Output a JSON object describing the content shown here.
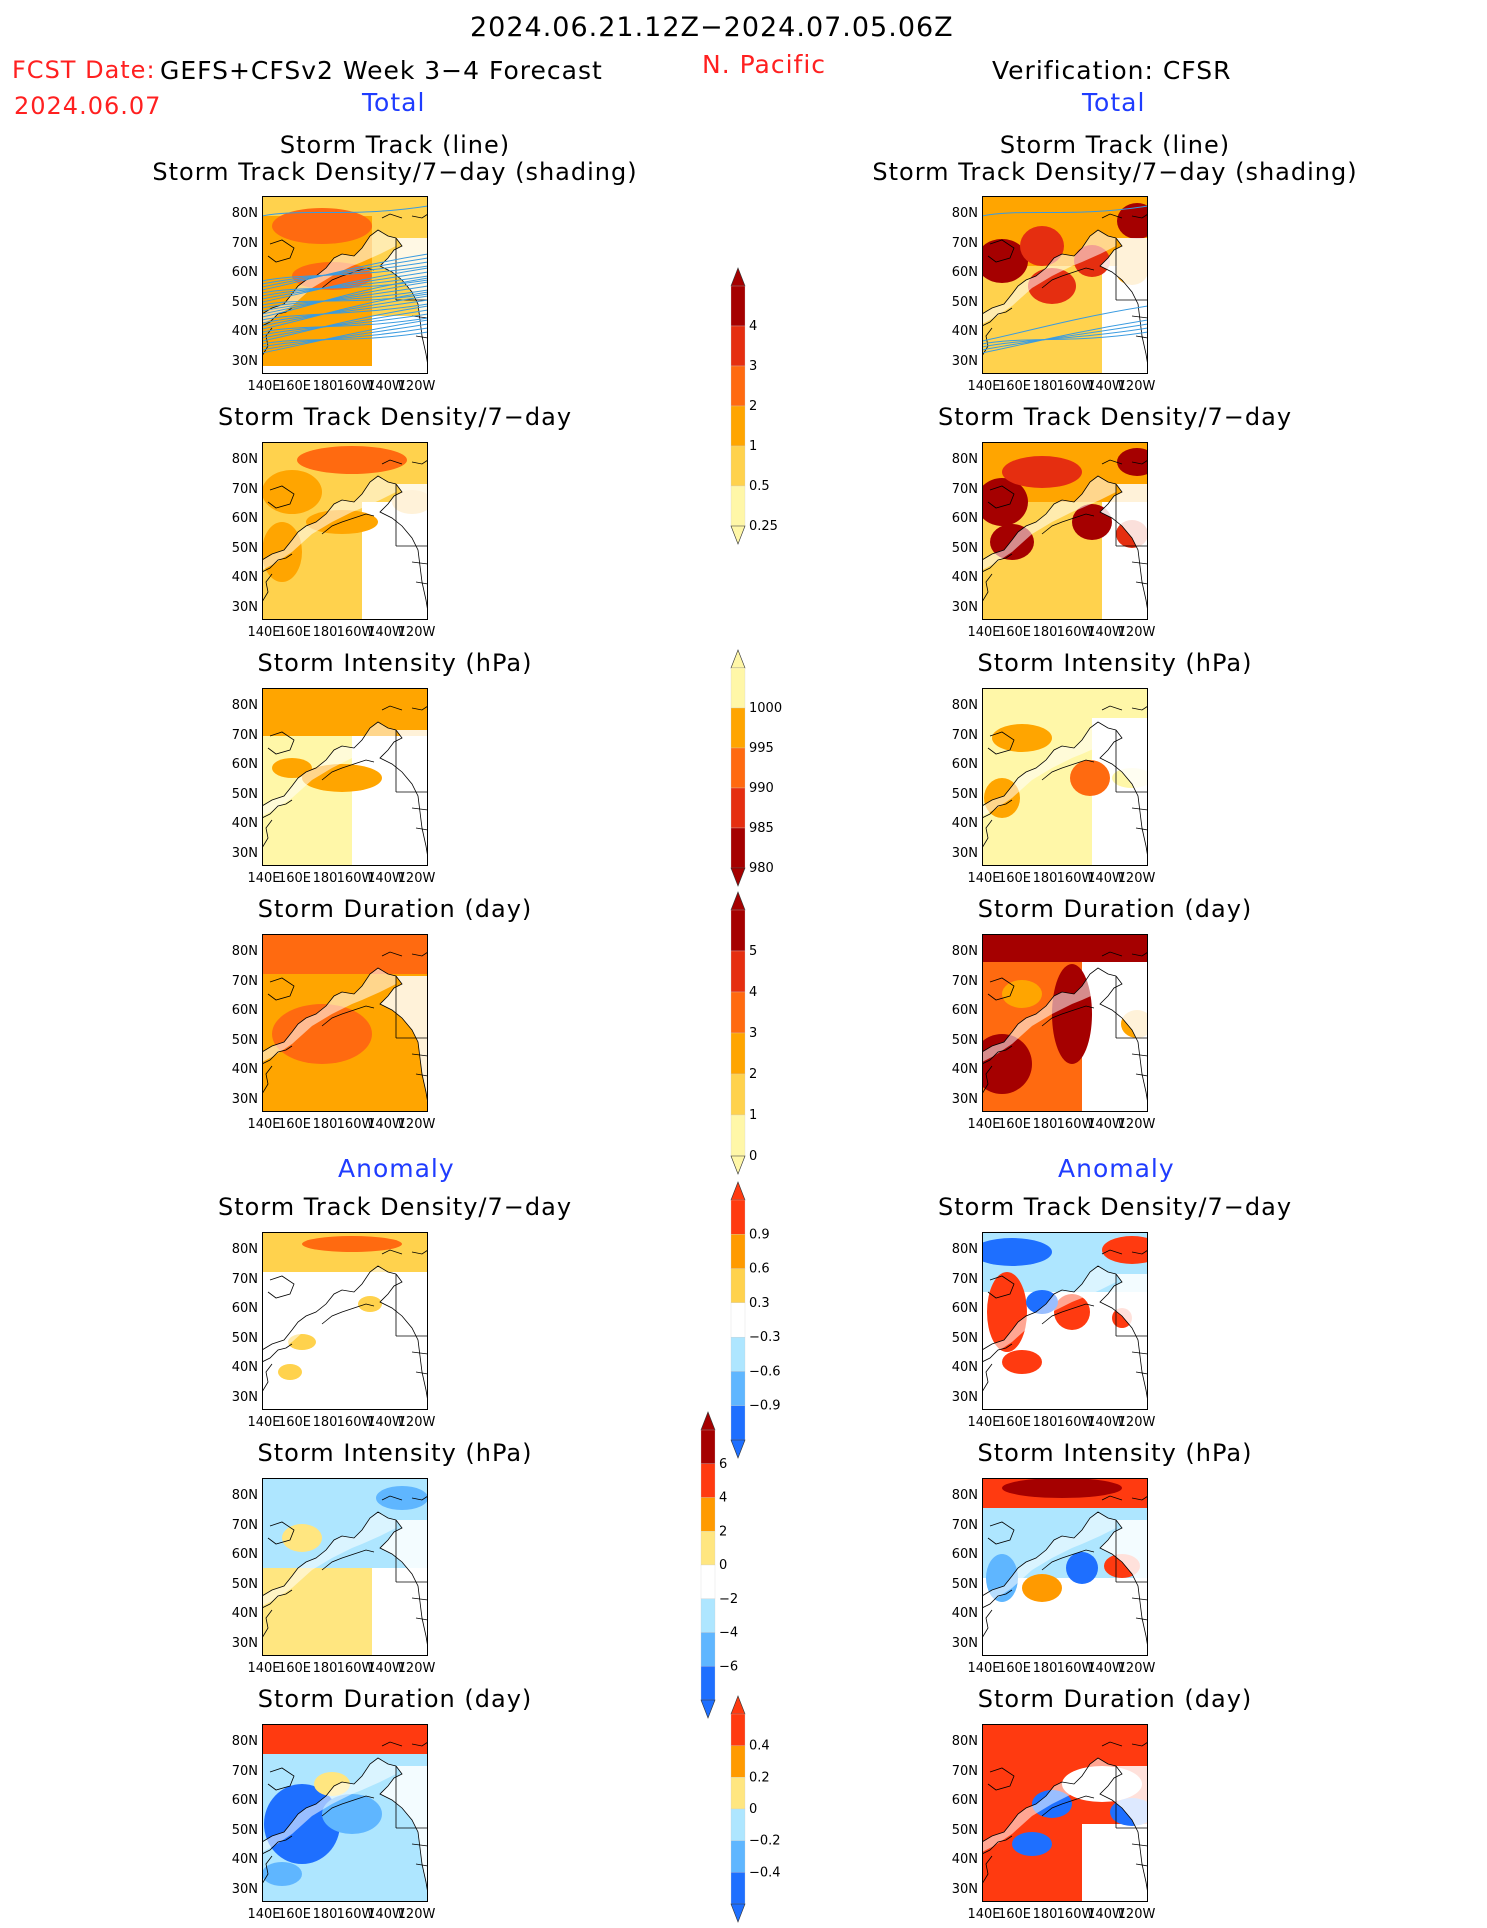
{
  "header": {
    "date_range": "2024.06.21.12Z−2024.07.05.06Z",
    "fcst_date_label": "FCST Date:",
    "fcst_date_value": "2024.06.07",
    "model": "GEFS+CFSv2 Week 3−4 Forecast",
    "region": "N. Pacific",
    "verification": "Verification: CFSR"
  },
  "sections": {
    "total": "Total",
    "anomaly": "Anomaly"
  },
  "panel_titles": {
    "storm_track_line": "Storm Track (line)",
    "storm_track_shading": "Storm Track Density/7−day (shading)",
    "density": "Storm Track Density/7−day",
    "intensity": "Storm Intensity (hPa)",
    "duration": "Storm Duration (day)"
  },
  "axes": {
    "y_ticks": [
      "80N",
      "70N",
      "60N",
      "50N",
      "40N",
      "30N"
    ],
    "x_ticks": [
      "140E",
      "160E",
      "180",
      "160W",
      "140W",
      "120W"
    ]
  },
  "colorbars": [
    {
      "id": "density",
      "labels": [
        "4",
        "3",
        "2",
        "1",
        "0.5",
        "0.25"
      ],
      "colors": [
        "#a50000",
        "#e52e10",
        "#ff6a10",
        "#ffa500",
        "#ffd24d",
        "#fff7a8"
      ]
    },
    {
      "id": "intensity",
      "labels": [
        "1000",
        "995",
        "990",
        "985",
        "980"
      ],
      "colors": [
        "#fff7a8",
        "#ffa500",
        "#ff6a10",
        "#e52e10",
        "#a50000"
      ]
    },
    {
      "id": "duration",
      "labels": [
        "5",
        "4",
        "3",
        "2",
        "1",
        "0"
      ],
      "colors": [
        "#a50000",
        "#e52e10",
        "#ff6a10",
        "#ffa500",
        "#ffd24d",
        "#fff7a8"
      ]
    },
    {
      "id": "density_anom",
      "labels": [
        "0.9",
        "0.6",
        "0.3",
        "−0.3",
        "−0.6",
        "−0.9"
      ],
      "colors": [
        "#ff3a10",
        "#ff9a00",
        "#ffd24d",
        "#ffffff",
        "#aee6ff",
        "#5fb6ff",
        "#1e6fff"
      ]
    },
    {
      "id": "intensity_anom",
      "labels": [
        "6",
        "4",
        "2",
        "0",
        "−2",
        "−4",
        "−6"
      ],
      "colors": [
        "#a50000",
        "#ff3a10",
        "#ff9a00",
        "#ffe680",
        "#ffffff",
        "#aee6ff",
        "#5fb6ff",
        "#1e6fff"
      ]
    },
    {
      "id": "duration_anom",
      "labels": [
        "0.4",
        "0.2",
        "0",
        "−0.2",
        "−0.4"
      ],
      "colors": [
        "#ff3a10",
        "#ff9a00",
        "#ffe680",
        "#aee6ff",
        "#5fb6ff",
        "#1e6fff"
      ]
    }
  ],
  "chart_data": [
    {
      "type": "heatmap",
      "title": "Storm Track (line) / Storm Track Density/7−day (shading)",
      "source": "GEFS+CFSv2",
      "field": "density",
      "ylim": [
        "30N",
        "85N"
      ],
      "xlim": [
        "140E",
        "110W"
      ]
    },
    {
      "type": "heatmap",
      "title": "Storm Track Density/7−day",
      "source": "GEFS+CFSv2",
      "field": "density"
    },
    {
      "type": "heatmap",
      "title": "Storm Intensity (hPa)",
      "source": "GEFS+CFSv2",
      "field": "intensity"
    },
    {
      "type": "heatmap",
      "title": "Storm Duration (day)",
      "source": "GEFS+CFSv2",
      "field": "duration"
    },
    {
      "type": "heatmap",
      "title": "Storm Track Density/7−day",
      "source": "GEFS+CFSv2",
      "field": "density_anomaly"
    },
    {
      "type": "heatmap",
      "title": "Storm Intensity (hPa)",
      "source": "GEFS+CFSv2",
      "field": "intensity_anomaly"
    },
    {
      "type": "heatmap",
      "title": "Storm Duration (day)",
      "source": "GEFS+CFSv2",
      "field": "duration_anomaly"
    },
    {
      "type": "heatmap",
      "title": "Storm Track (line) / Storm Track Density/7−day (shading)",
      "source": "CFSR",
      "field": "density"
    },
    {
      "type": "heatmap",
      "title": "Storm Track Density/7−day",
      "source": "CFSR",
      "field": "density"
    },
    {
      "type": "heatmap",
      "title": "Storm Intensity (hPa)",
      "source": "CFSR",
      "field": "intensity"
    },
    {
      "type": "heatmap",
      "title": "Storm Duration (day)",
      "source": "CFSR",
      "field": "duration"
    },
    {
      "type": "heatmap",
      "title": "Storm Track Density/7−day",
      "source": "CFSR",
      "field": "density_anomaly"
    },
    {
      "type": "heatmap",
      "title": "Storm Intensity (hPa)",
      "source": "CFSR",
      "field": "intensity_anomaly"
    },
    {
      "type": "heatmap",
      "title": "Storm Duration (day)",
      "source": "CFSR",
      "field": "duration_anomaly"
    }
  ]
}
